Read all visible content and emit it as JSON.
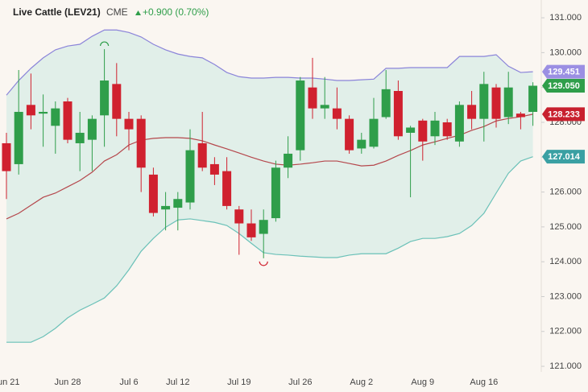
{
  "chart_data": {
    "type": "candlestick",
    "title": "Live Cattle (LEV21)",
    "exchange": "CME",
    "change": "+0.900 (0.70%)",
    "categories": [
      "Jun 21",
      null,
      null,
      null,
      null,
      "Jun 28",
      null,
      null,
      null,
      null,
      "Jul 6",
      null,
      null,
      null,
      "Jul 12",
      null,
      null,
      null,
      null,
      "Jul 19",
      null,
      null,
      null,
      null,
      "Jul 26",
      null,
      null,
      null,
      null,
      "Aug 2",
      null,
      null,
      null,
      null,
      "Aug 9",
      null,
      null,
      null,
      null,
      "Aug 16",
      null,
      null,
      null,
      null
    ],
    "open": [
      127.4,
      126.8,
      128.5,
      128.25,
      127.9,
      128.6,
      127.4,
      127.5,
      128.2,
      129.1,
      128.1,
      128.1,
      126.5,
      125.5,
      125.55,
      125.7,
      127.4,
      126.8,
      126.6,
      125.5,
      125.1,
      124.8,
      125.25,
      126.7,
      127.2,
      129.0,
      128.4,
      128.4,
      128.1,
      127.25,
      127.3,
      128.15,
      128.9,
      127.7,
      128.05,
      127.6,
      128.0,
      127.45,
      128.5,
      128.1,
      129.0,
      128.15,
      128.25,
      128.3
    ],
    "high": [
      127.7,
      129.5,
      129.4,
      128.8,
      128.6,
      128.7,
      128.3,
      128.2,
      130.1,
      129.7,
      128.3,
      128.2,
      126.7,
      126.0,
      126.0,
      127.8,
      128.3,
      127.0,
      127.0,
      125.6,
      125.5,
      125.5,
      126.9,
      127.6,
      129.3,
      129.85,
      129.3,
      129.0,
      128.2,
      127.7,
      128.7,
      129.5,
      129.2,
      127.9,
      128.1,
      128.3,
      128.1,
      128.6,
      128.9,
      129.45,
      129.1,
      129.45,
      128.3,
      129.15
    ],
    "low": [
      125.8,
      126.5,
      127.8,
      127.3,
      127.1,
      127.4,
      126.6,
      126.6,
      127.3,
      127.6,
      127.2,
      126.0,
      125.3,
      124.9,
      124.9,
      125.5,
      126.6,
      126.2,
      125.5,
      124.2,
      124.6,
      124.1,
      125.15,
      126.4,
      126.9,
      128.1,
      128.1,
      127.8,
      127.1,
      127.1,
      127.25,
      128.1,
      127.5,
      125.85,
      126.9,
      127.35,
      127.5,
      127.3,
      127.8,
      127.45,
      127.85,
      127.95,
      127.8,
      127.9
    ],
    "close": [
      126.6,
      128.3,
      128.2,
      128.3,
      128.4,
      127.5,
      127.7,
      128.1,
      129.2,
      128.1,
      127.8,
      126.7,
      125.4,
      125.6,
      125.8,
      127.2,
      126.7,
      126.5,
      125.6,
      125.1,
      124.7,
      125.2,
      126.7,
      127.1,
      129.2,
      128.4,
      128.5,
      128.1,
      127.2,
      127.5,
      128.1,
      128.95,
      127.6,
      127.85,
      127.45,
      128.05,
      127.6,
      128.5,
      128.1,
      129.1,
      128.1,
      129.0,
      128.15,
      129.05
    ],
    "up_color": "#2f9e4a",
    "down_color": "#d0212f",
    "upper": {
      "color": "#8b84d9",
      "values": [
        128.78,
        129.2,
        129.55,
        129.85,
        130.08,
        130.19,
        130.24,
        130.47,
        130.65,
        130.65,
        130.58,
        130.45,
        130.24,
        130.08,
        129.96,
        129.89,
        129.85,
        129.66,
        129.43,
        129.31,
        129.27,
        129.27,
        129.29,
        129.29,
        129.27,
        129.27,
        129.24,
        129.2,
        129.2,
        129.22,
        129.24,
        129.55,
        129.55,
        129.57,
        129.57,
        129.57,
        129.57,
        129.89,
        129.89,
        129.89,
        129.94,
        129.61,
        129.43,
        129.451
      ]
    },
    "middle": {
      "color": "#b5474c",
      "values": [
        125.23,
        125.39,
        125.62,
        125.85,
        125.97,
        126.15,
        126.33,
        126.57,
        126.89,
        127.07,
        127.35,
        127.49,
        127.54,
        127.56,
        127.56,
        127.54,
        127.47,
        127.35,
        127.24,
        127.12,
        127.0,
        126.89,
        126.8,
        126.77,
        126.8,
        126.84,
        126.89,
        126.89,
        126.82,
        126.75,
        126.77,
        126.89,
        127.05,
        127.19,
        127.35,
        127.44,
        127.54,
        127.63,
        127.77,
        127.88,
        128.04,
        128.11,
        128.16,
        128.233
      ]
    },
    "lower": {
      "color": "#6bc1b8",
      "values": [
        121.69,
        121.69,
        121.69,
        121.85,
        122.09,
        122.39,
        122.61,
        122.78,
        122.96,
        123.31,
        123.77,
        124.3,
        124.67,
        124.99,
        125.2,
        125.23,
        125.18,
        125.13,
        125.04,
        124.81,
        124.53,
        124.26,
        124.21,
        124.19,
        124.16,
        124.14,
        124.12,
        124.12,
        124.19,
        124.23,
        124.23,
        124.23,
        124.39,
        124.58,
        124.67,
        124.67,
        124.72,
        124.81,
        125.04,
        125.39,
        125.97,
        126.54,
        126.89,
        127.014
      ]
    },
    "band_fill": "#dcede7",
    "ylim": [
      120.84,
      131.51
    ],
    "yticks": [
      {
        "value": 121,
        "label": "121.000"
      },
      {
        "value": 122,
        "label": "122.000"
      },
      {
        "value": 123,
        "label": "123.000"
      },
      {
        "value": 124,
        "label": "124.000"
      },
      {
        "value": 125,
        "label": "125.000"
      },
      {
        "value": 126,
        "label": "126.000"
      },
      {
        "value": 127,
        "label": "127.000"
      },
      {
        "value": 128,
        "label": "128.000"
      },
      {
        "value": 129,
        "label": "129.000"
      },
      {
        "value": 130,
        "label": "130.000"
      },
      {
        "value": 131,
        "label": "131.000"
      }
    ],
    "price_labels": [
      {
        "value": 129.451,
        "label": "129.451",
        "color": "#9b8fe3"
      },
      {
        "value": 129.05,
        "label": "129.050",
        "color": "#2f9e4a"
      },
      {
        "value": 128.233,
        "label": "128.233",
        "color": "#c8202e"
      },
      {
        "value": 127.014,
        "label": "127.014",
        "color": "#3aa0a3"
      }
    ]
  }
}
